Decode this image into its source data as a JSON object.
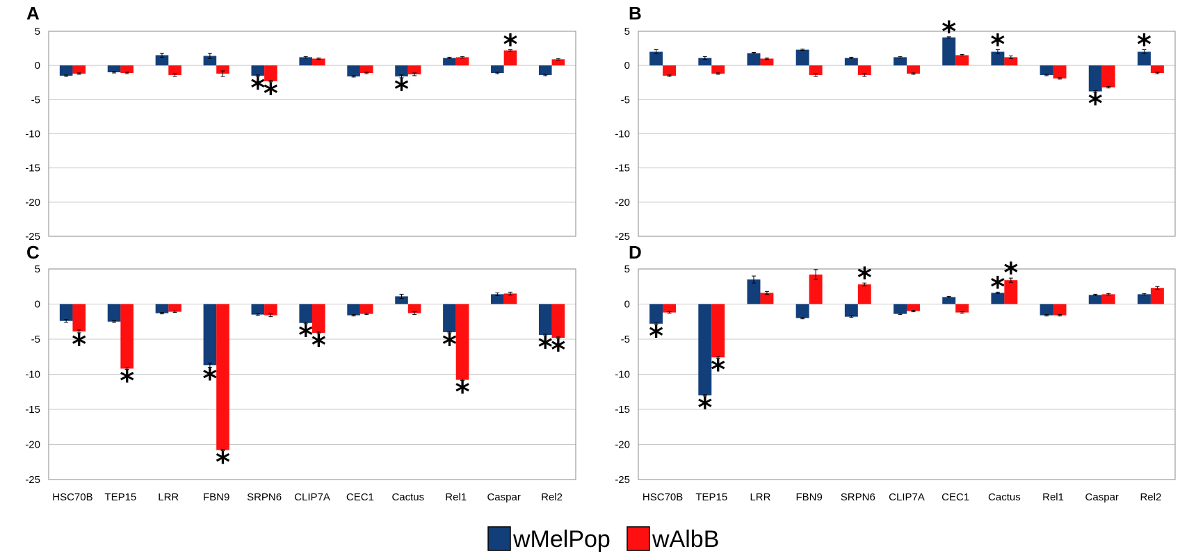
{
  "chart_data": {
    "type": "bar",
    "categories": [
      "HSC70B",
      "TEP15",
      "LRR",
      "FBN9",
      "SRPN6",
      "CLIP7A",
      "CEC1",
      "Cactus",
      "Rel1",
      "Caspar",
      "Rel2"
    ],
    "ylim": [
      -25,
      5
    ],
    "yticks": [
      "5",
      "0",
      "-5",
      "-10",
      "-15",
      "-20",
      "-25"
    ],
    "grid": true,
    "legend": {
      "placement": "bottom-center",
      "entries": [
        {
          "name": "wMelPop",
          "color": "#123f7a"
        },
        {
          "name": "wAlbB",
          "color": "#ff1010"
        }
      ]
    },
    "significance_marker": "*",
    "panels": [
      {
        "label": "A",
        "series": [
          {
            "name": "wMelPop",
            "values": [
              -1.5,
              -1.0,
              1.5,
              1.4,
              -1.5,
              1.2,
              -1.6,
              -1.6,
              1.1,
              -1.1,
              -1.4
            ],
            "errors": [
              0.1,
              0.1,
              0.3,
              0.4,
              0.1,
              0.1,
              0.1,
              0.2,
              0.1,
              0.1,
              0.1
            ],
            "significant": [
              false,
              false,
              false,
              false,
              true,
              false,
              false,
              true,
              false,
              false,
              false
            ]
          },
          {
            "name": "wAlbB",
            "values": [
              -1.2,
              -1.1,
              -1.4,
              -1.2,
              -2.3,
              1.0,
              -1.1,
              -1.3,
              1.2,
              2.2,
              0.9
            ],
            "errors": [
              0.1,
              0.1,
              0.2,
              0.4,
              0.1,
              0.1,
              0.1,
              0.2,
              0.1,
              0.1,
              0.1
            ],
            "significant": [
              false,
              false,
              false,
              false,
              true,
              false,
              false,
              false,
              false,
              true,
              false
            ]
          }
        ]
      },
      {
        "label": "B",
        "series": [
          {
            "name": "wMelPop",
            "values": [
              2.0,
              1.1,
              1.8,
              2.3,
              1.1,
              1.2,
              4.1,
              2.0,
              -1.4,
              -3.8,
              2.0
            ],
            "errors": [
              0.3,
              0.2,
              0.1,
              0.1,
              0.1,
              0.1,
              0.1,
              0.3,
              0.1,
              0.1,
              0.3
            ],
            "significant": [
              false,
              false,
              false,
              false,
              false,
              false,
              true,
              true,
              false,
              true,
              true
            ]
          },
          {
            "name": "wAlbB",
            "values": [
              -1.5,
              -1.2,
              1.0,
              -1.4,
              -1.4,
              -1.2,
              1.5,
              1.2,
              -1.9,
              -3.2,
              -1.1
            ],
            "errors": [
              0.1,
              0.1,
              0.1,
              0.2,
              0.2,
              0.1,
              0.1,
              0.2,
              0.1,
              0.1,
              0.1
            ],
            "significant": [
              false,
              false,
              false,
              false,
              false,
              false,
              false,
              false,
              false,
              false,
              false
            ]
          }
        ]
      },
      {
        "label": "C",
        "series": [
          {
            "name": "wMelPop",
            "values": [
              -2.4,
              -2.5,
              -1.3,
              -8.7,
              -1.5,
              -2.7,
              -1.6,
              1.1,
              -4.0,
              1.4,
              -4.4
            ],
            "errors": [
              0.2,
              0.1,
              0.1,
              0.3,
              0.1,
              0.1,
              0.1,
              0.3,
              0.1,
              0.2,
              0.1
            ],
            "significant": [
              false,
              false,
              false,
              true,
              false,
              true,
              false,
              false,
              true,
              false,
              true
            ]
          },
          {
            "name": "wAlbB",
            "values": [
              -3.9,
              -9.2,
              -1.1,
              -20.8,
              -1.6,
              -4.1,
              -1.4,
              -1.3,
              -10.8,
              1.5,
              -4.8
            ],
            "errors": [
              0.2,
              0.1,
              0.1,
              0.1,
              0.2,
              0.1,
              0.1,
              0.2,
              0.1,
              0.2,
              0.1
            ],
            "significant": [
              true,
              true,
              false,
              true,
              false,
              true,
              false,
              false,
              true,
              false,
              true
            ]
          }
        ]
      },
      {
        "label": "D",
        "series": [
          {
            "name": "wMelPop",
            "values": [
              -2.8,
              -13.0,
              3.5,
              -2.0,
              -1.8,
              -1.4,
              1.0,
              1.6,
              -1.6,
              1.3,
              1.4
            ],
            "errors": [
              0.1,
              0.1,
              0.5,
              0.1,
              0.1,
              0.1,
              0.1,
              0.1,
              0.1,
              0.1,
              0.1
            ],
            "significant": [
              true,
              true,
              false,
              false,
              false,
              false,
              false,
              true,
              false,
              false,
              false
            ]
          },
          {
            "name": "wAlbB",
            "values": [
              -1.2,
              -7.6,
              1.6,
              4.2,
              2.8,
              -1.0,
              -1.2,
              3.4,
              -1.6,
              1.4,
              2.3
            ],
            "errors": [
              0.1,
              0.1,
              0.2,
              0.7,
              0.2,
              0.1,
              0.1,
              0.3,
              0.1,
              0.1,
              0.2
            ],
            "significant": [
              false,
              true,
              false,
              false,
              true,
              false,
              false,
              true,
              false,
              false,
              false
            ]
          }
        ]
      }
    ]
  }
}
